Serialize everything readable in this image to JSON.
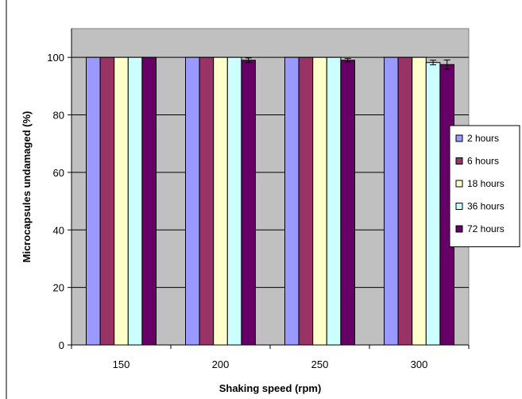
{
  "chart_data": {
    "type": "bar",
    "categories": [
      "150",
      "200",
      "250",
      "300"
    ],
    "series": [
      {
        "name": "2 hours",
        "color": "#9999ff",
        "values": [
          100,
          100,
          100,
          100
        ],
        "errors": [
          0,
          0,
          0,
          0
        ]
      },
      {
        "name": "6 hours",
        "color": "#993366",
        "values": [
          100,
          100,
          100,
          100
        ],
        "errors": [
          0,
          0,
          0,
          0
        ]
      },
      {
        "name": "18 hours",
        "color": "#ffffcc",
        "values": [
          100,
          100,
          100,
          100
        ],
        "errors": [
          0,
          0,
          0,
          0
        ]
      },
      {
        "name": "36 hours",
        "color": "#ccffff",
        "values": [
          100,
          100,
          100,
          98.2
        ],
        "errors": [
          0,
          0,
          0,
          0.8
        ]
      },
      {
        "name": "72 hours",
        "color": "#660066",
        "values": [
          100,
          99,
          99,
          97.5
        ],
        "errors": [
          0,
          0.8,
          0.6,
          1.6
        ]
      }
    ],
    "xlabel": "Shaking speed (rpm)",
    "ylabel": "Microcapsules undamaged (%)",
    "ylim": [
      0,
      110
    ],
    "yticks": [
      0,
      20,
      40,
      60,
      80,
      100
    ],
    "grid": true,
    "plot_background": "#c0c0c0",
    "legend_position": "right"
  }
}
